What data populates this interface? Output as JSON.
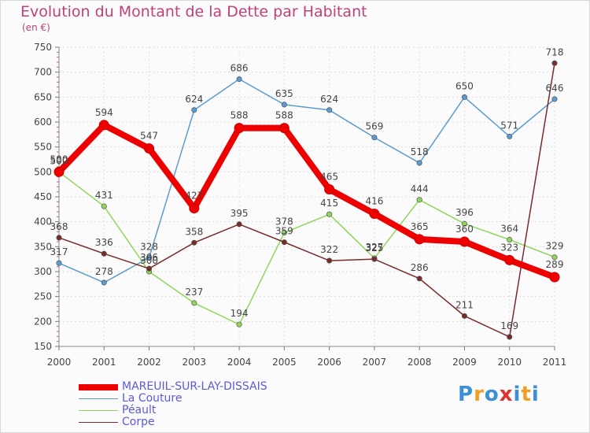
{
  "header": {
    "title": "Evolution du Montant de la Dette par Habitant",
    "subtitle": "(en €)"
  },
  "brand": {
    "letters": [
      "P",
      "r",
      "o",
      "x",
      "i",
      "t",
      "i"
    ],
    "colors": [
      "#3a8fd6",
      "#f0a020",
      "#3a8fd6",
      "#e03030",
      "#3a8fd6",
      "#f0a020",
      "#3a8fd6"
    ]
  },
  "chart_data": {
    "type": "line",
    "x": [
      "2000",
      "2001",
      "2002",
      "2003",
      "2004",
      "2005",
      "2006",
      "2007",
      "2008",
      "2009",
      "2010",
      "2011"
    ],
    "ylim": [
      150,
      750
    ],
    "yticks": [
      "150",
      "200",
      "250",
      "300",
      "350",
      "400",
      "450",
      "500",
      "550",
      "600",
      "650",
      "700",
      "750"
    ],
    "grid": true,
    "legend_position": "bottom-left",
    "series": [
      {
        "name": "La Couture",
        "color": "#5b9bd0",
        "values": [
          317,
          278,
          328,
          624,
          686,
          635,
          624,
          569,
          518,
          650,
          571,
          646
        ],
        "labels": [
          "317",
          "278",
          "328",
          "624",
          "686",
          "635",
          "624",
          "569",
          "518",
          "650",
          "571",
          "646"
        ]
      },
      {
        "name": "Péault",
        "color": "#8fd65a",
        "values": [
          500,
          431,
          300,
          237,
          194,
          378,
          415,
          327,
          444,
          396,
          364,
          329
        ],
        "labels": [
          "500",
          "431",
          "300",
          "237",
          "194",
          "378",
          "415",
          "327",
          "444",
          "396",
          "364",
          "329"
        ]
      },
      {
        "name": "Corpe",
        "color": "#7a2a2a",
        "values": [
          368,
          336,
          306,
          358,
          395,
          359,
          322,
          325,
          286,
          211,
          169,
          718
        ],
        "labels": [
          "368",
          "336",
          "306",
          "358",
          "395",
          "359",
          "322",
          "325",
          "286",
          "211",
          "169",
          "718"
        ]
      },
      {
        "name": "MAREUIL-SUR-LAY-DISSAIS",
        "color": "#ee0000",
        "values": [
          500,
          594,
          547,
          427,
          588,
          588,
          465,
          416,
          365,
          360,
          323,
          289
        ],
        "labels": [
          "500",
          "594",
          "547",
          "427",
          "588",
          "588",
          "465",
          "416",
          "365",
          "360",
          "323",
          "289"
        ]
      }
    ],
    "legend": [
      {
        "name": "MAREUIL-SUR-LAY-DISSAIS",
        "color": "#ee0000",
        "width": 8
      },
      {
        "name": "La Couture",
        "color": "#5b9bd0",
        "width": 1.5
      },
      {
        "name": "Péault",
        "color": "#8fd65a",
        "width": 1.5
      },
      {
        "name": "Corpe",
        "color": "#7a2a2a",
        "width": 1.5
      }
    ]
  }
}
